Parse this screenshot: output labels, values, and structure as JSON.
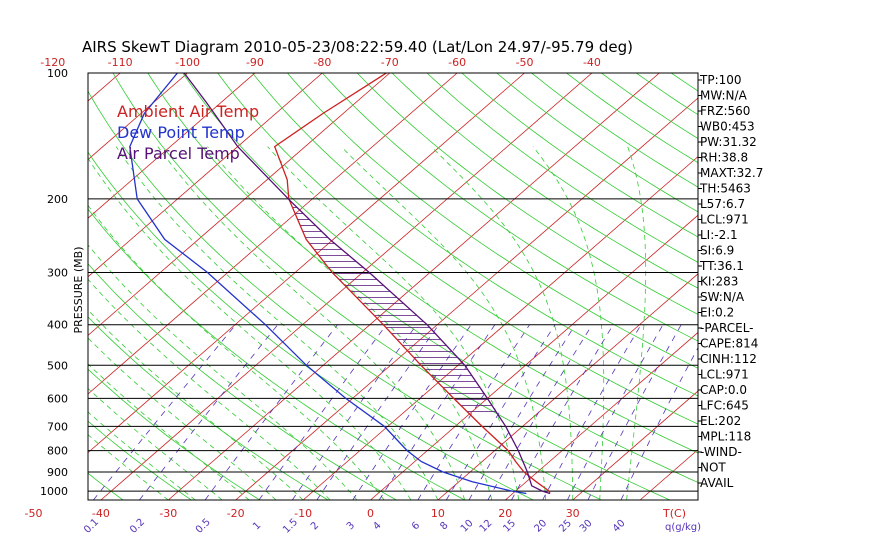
{
  "chart_data": {
    "type": "line",
    "title": "AIRS SkewT Diagram 2010-05-23/08:22:59.40 (Lat/Lon 24.97/-95.79 deg)",
    "ylabel": "PRESSURE (MB)",
    "xlabel": "T(C)",
    "mixing_ratio_label": "q(g/kg)",
    "y_scale": "log",
    "ylim": [
      1050,
      100
    ],
    "pressure_ticks": [
      "100",
      "200",
      "300",
      "400",
      "500",
      "600",
      "700",
      "800",
      "900",
      "1000"
    ],
    "top_temp_ticks": [
      "-120",
      "-110",
      "-100",
      "-90",
      "-80",
      "-70",
      "-60",
      "-50",
      "-40"
    ],
    "bottom_temp_ticks": [
      "-50",
      "-40",
      "-30",
      "-20",
      "-10",
      "0",
      "10",
      "20",
      "30"
    ],
    "mixing_ratio_ticks": [
      "0.1",
      "0.2",
      "0.5",
      "1",
      "1.5",
      "2",
      "3",
      "4",
      "6",
      "8",
      "10",
      "12",
      "15",
      "20",
      "25",
      "30",
      "40"
    ],
    "legend": [
      "Ambient Air Temp",
      "Dew Point Temp",
      "Air Parcel Temp"
    ],
    "colors": {
      "ambient": "#cc2222",
      "dewpoint": "#2233cc",
      "parcel": "#551177",
      "isotherm": "#cc2222",
      "dry_adiabat": "#33cc33",
      "moist_adiabat": "#33cc33",
      "mixing_ratio": "#5533bb",
      "hatch": "#551177"
    },
    "series": [
      {
        "name": "Ambient Air Temp",
        "points": [
          {
            "p": 1013,
            "t": 25.5
          },
          {
            "p": 1000,
            "t": 25.0
          },
          {
            "p": 950,
            "t": 21.5
          },
          {
            "p": 900,
            "t": 18.0
          },
          {
            "p": 850,
            "t": 15.0
          },
          {
            "p": 800,
            "t": 12.0
          },
          {
            "p": 700,
            "t": 4.0
          },
          {
            "p": 600,
            "t": -5.0
          },
          {
            "p": 500,
            "t": -15.5
          },
          {
            "p": 400,
            "t": -28.0
          },
          {
            "p": 300,
            "t": -44.5
          },
          {
            "p": 250,
            "t": -54.0
          },
          {
            "p": 200,
            "t": -63.5
          },
          {
            "p": 180,
            "t": -67.0
          },
          {
            "p": 150,
            "t": -74.5
          },
          {
            "p": 125,
            "t": -73.0
          },
          {
            "p": 100,
            "t": -70.5
          }
        ]
      },
      {
        "name": "Dew Point Temp",
        "points": [
          {
            "p": 1013,
            "t": 22.0
          },
          {
            "p": 1000,
            "t": 19.5
          },
          {
            "p": 950,
            "t": 12.0
          },
          {
            "p": 900,
            "t": 6.0
          },
          {
            "p": 850,
            "t": 1.0
          },
          {
            "p": 800,
            "t": -3.0
          },
          {
            "p": 700,
            "t": -10.5
          },
          {
            "p": 600,
            "t": -21.0
          },
          {
            "p": 500,
            "t": -32.5
          },
          {
            "p": 400,
            "t": -45.5
          },
          {
            "p": 300,
            "t": -63.0
          },
          {
            "p": 250,
            "t": -75.0
          },
          {
            "p": 200,
            "t": -86.0
          },
          {
            "p": 150,
            "t": -96.0
          },
          {
            "p": 125,
            "t": -99.5
          },
          {
            "p": 100,
            "t": -101.5
          }
        ]
      },
      {
        "name": "Air Parcel Temp",
        "points": [
          {
            "p": 1013,
            "t": 25.5
          },
          {
            "p": 1000,
            "t": 24.0
          },
          {
            "p": 971,
            "t": 21.5
          },
          {
            "p": 900,
            "t": 18.5
          },
          {
            "p": 800,
            "t": 13.5
          },
          {
            "p": 700,
            "t": 7.5
          },
          {
            "p": 645,
            "t": 3.5
          },
          {
            "p": 600,
            "t": 0.0
          },
          {
            "p": 500,
            "t": -9.0
          },
          {
            "p": 400,
            "t": -21.5
          },
          {
            "p": 300,
            "t": -39.0
          },
          {
            "p": 250,
            "t": -50.5
          },
          {
            "p": 202,
            "t": -63.0
          },
          {
            "p": 150,
            "t": -80.0
          },
          {
            "p": 118,
            "t": -92.0
          },
          {
            "p": 100,
            "t": -100.5
          }
        ]
      }
    ],
    "indices": [
      "TP:100",
      "MW:N/A",
      "FRZ:560",
      "WB0:453",
      "PW:31.32",
      "RH:38.8",
      "MAXT:32.7",
      "TH:5463",
      "L57:6.7",
      "LCL:971",
      "LI:-2.1",
      "SI:6.9",
      "TT:36.1",
      "KI:283",
      "SW:N/A",
      "EI:0.2",
      "-PARCEL-",
      "CAPE:814",
      "CINH:112",
      "LCL:971",
      "CAP:0.0",
      "LFC:645",
      "EL:202",
      "MPL:118",
      "-WIND-",
      "NOT",
      "AVAIL"
    ]
  }
}
